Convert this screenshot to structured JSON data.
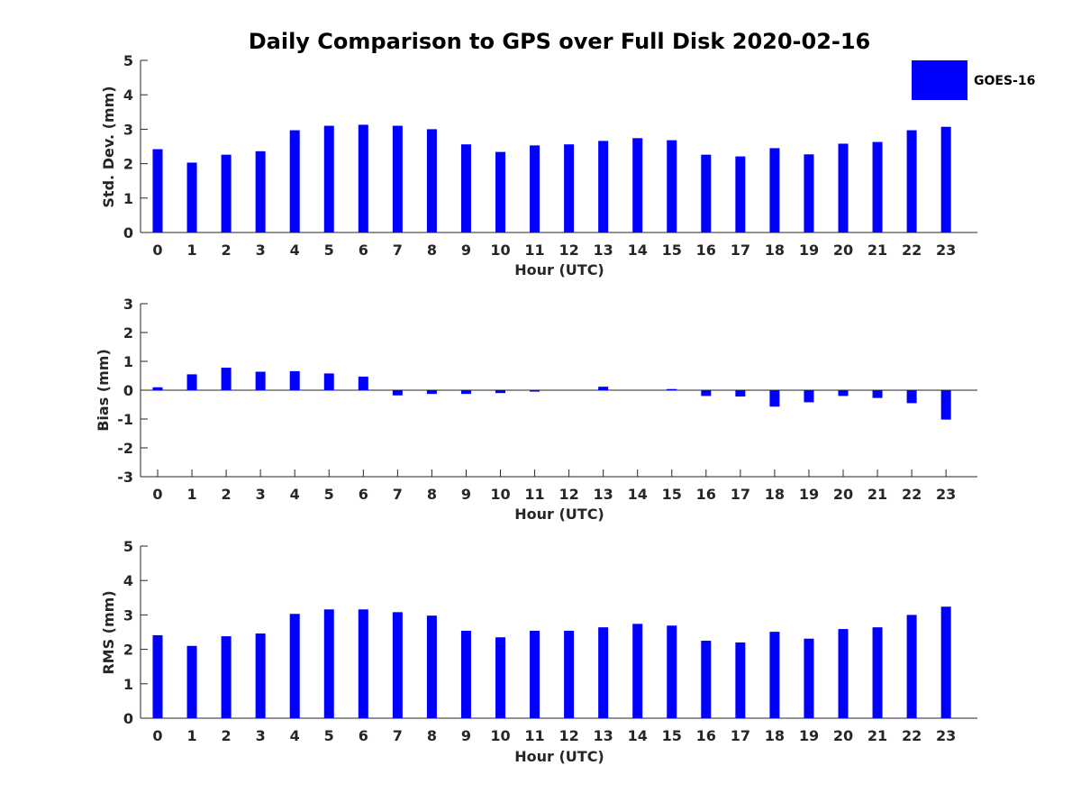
{
  "chart_data": [
    {
      "id": "std",
      "type": "bar",
      "title": "Daily Comparison to GPS over Full Disk 2020-02-16",
      "xlabel": "Hour (UTC)",
      "ylabel": "Std. Dev. (mm)",
      "ylim": [
        0,
        5
      ],
      "yticks": [
        0,
        1,
        2,
        3,
        4,
        5
      ],
      "categories": [
        "0",
        "1",
        "2",
        "3",
        "4",
        "5",
        "6",
        "7",
        "8",
        "9",
        "10",
        "11",
        "12",
        "13",
        "14",
        "15",
        "16",
        "17",
        "18",
        "19",
        "20",
        "21",
        "22",
        "23"
      ],
      "series": [
        {
          "name": "GOES-16",
          "color": "#0000ff",
          "values": [
            2.42,
            2.03,
            2.26,
            2.36,
            2.97,
            3.1,
            3.13,
            3.1,
            3.0,
            2.56,
            2.34,
            2.53,
            2.56,
            2.66,
            2.74,
            2.68,
            2.26,
            2.21,
            2.45,
            2.27,
            2.58,
            2.63,
            2.97,
            3.07
          ]
        }
      ],
      "legend": {
        "label": "GOES-16",
        "position": "top-right"
      }
    },
    {
      "id": "bias",
      "type": "bar",
      "xlabel": "Hour (UTC)",
      "ylabel": "Bias (mm)",
      "ylim": [
        -3,
        3
      ],
      "yticks": [
        -3,
        -2,
        -1,
        0,
        1,
        2,
        3
      ],
      "categories": [
        "0",
        "1",
        "2",
        "3",
        "4",
        "5",
        "6",
        "7",
        "8",
        "9",
        "10",
        "11",
        "12",
        "13",
        "14",
        "15",
        "16",
        "17",
        "18",
        "19",
        "20",
        "21",
        "22",
        "23"
      ],
      "series": [
        {
          "name": "GOES-16",
          "color": "#0000ff",
          "values": [
            0.1,
            0.55,
            0.78,
            0.64,
            0.66,
            0.58,
            0.47,
            -0.18,
            -0.13,
            -0.13,
            -0.1,
            -0.05,
            0.0,
            0.12,
            0.0,
            0.04,
            -0.2,
            -0.22,
            -0.57,
            -0.42,
            -0.2,
            -0.27,
            -0.45,
            -1.02
          ]
        }
      ]
    },
    {
      "id": "rms",
      "type": "bar",
      "xlabel": "Hour (UTC)",
      "ylabel": "RMS (mm)",
      "ylim": [
        0,
        5
      ],
      "yticks": [
        0,
        1,
        2,
        3,
        4,
        5
      ],
      "categories": [
        "0",
        "1",
        "2",
        "3",
        "4",
        "5",
        "6",
        "7",
        "8",
        "9",
        "10",
        "11",
        "12",
        "13",
        "14",
        "15",
        "16",
        "17",
        "18",
        "19",
        "20",
        "21",
        "22",
        "23"
      ],
      "series": [
        {
          "name": "GOES-16",
          "color": "#0000ff",
          "values": [
            2.41,
            2.1,
            2.38,
            2.46,
            3.03,
            3.16,
            3.16,
            3.08,
            2.98,
            2.54,
            2.35,
            2.54,
            2.54,
            2.64,
            2.74,
            2.69,
            2.25,
            2.2,
            2.51,
            2.31,
            2.59,
            2.64,
            3.0,
            3.24
          ]
        }
      ]
    }
  ]
}
